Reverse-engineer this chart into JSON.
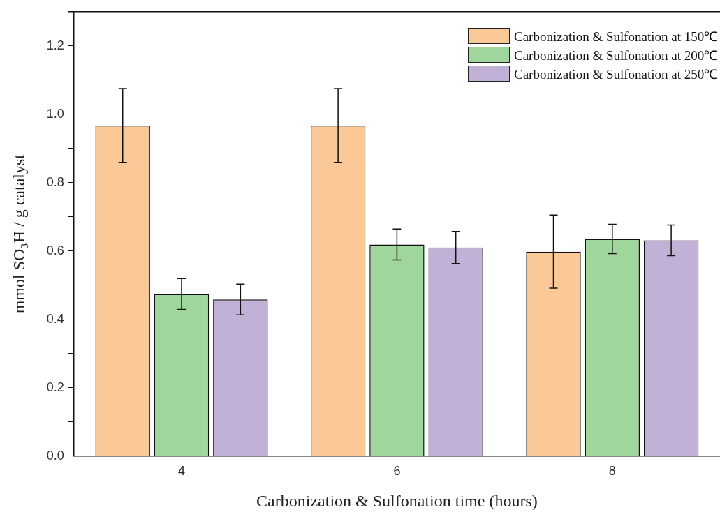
{
  "chart_data": {
    "type": "bar",
    "xlabel": "Carbonization & Sulfonation time (hours)",
    "ylabel": "mmol SO₃H / g catalyst",
    "categories": [
      "4",
      "6",
      "8"
    ],
    "series": [
      {
        "name": "Carbonization & Sulfonation at 150℃",
        "color": "#fbc897",
        "values": [
          0.967,
          0.967,
          0.598
        ],
        "errors": [
          0.108,
          0.108,
          0.107
        ]
      },
      {
        "name": "Carbonization & Sulfonation at 200℃",
        "color": "#9ed69b",
        "values": [
          0.474,
          0.619,
          0.635
        ],
        "errors": [
          0.045,
          0.045,
          0.043
        ]
      },
      {
        "name": "Carbonization & Sulfonation at 250℃",
        "color": "#c2b1d6",
        "values": [
          0.458,
          0.61,
          0.631
        ],
        "errors": [
          0.045,
          0.047,
          0.045
        ]
      }
    ],
    "ylim": [
      0,
      1.3
    ],
    "yticks": [
      "0.0",
      {
        "value": 0.1,
        "label": null
      },
      {
        "value": 0.2,
        "label": "0.2"
      },
      {
        "value": 0.3,
        "label": null
      },
      {
        "value": 0.4,
        "label": "0.4"
      },
      {
        "value": 0.5,
        "label": null
      },
      {
        "value": 0.6,
        "label": "0.6"
      },
      {
        "value": 0.7,
        "label": null
      },
      {
        "value": 0.8,
        "label": "0.8"
      },
      {
        "value": 0.9,
        "label": null
      },
      {
        "value": 1.0,
        "label": "1.0"
      },
      {
        "value": 1.1,
        "label": null
      },
      {
        "value": 1.2,
        "label": "1.2"
      }
    ],
    "grid": false,
    "legend": "top right"
  }
}
